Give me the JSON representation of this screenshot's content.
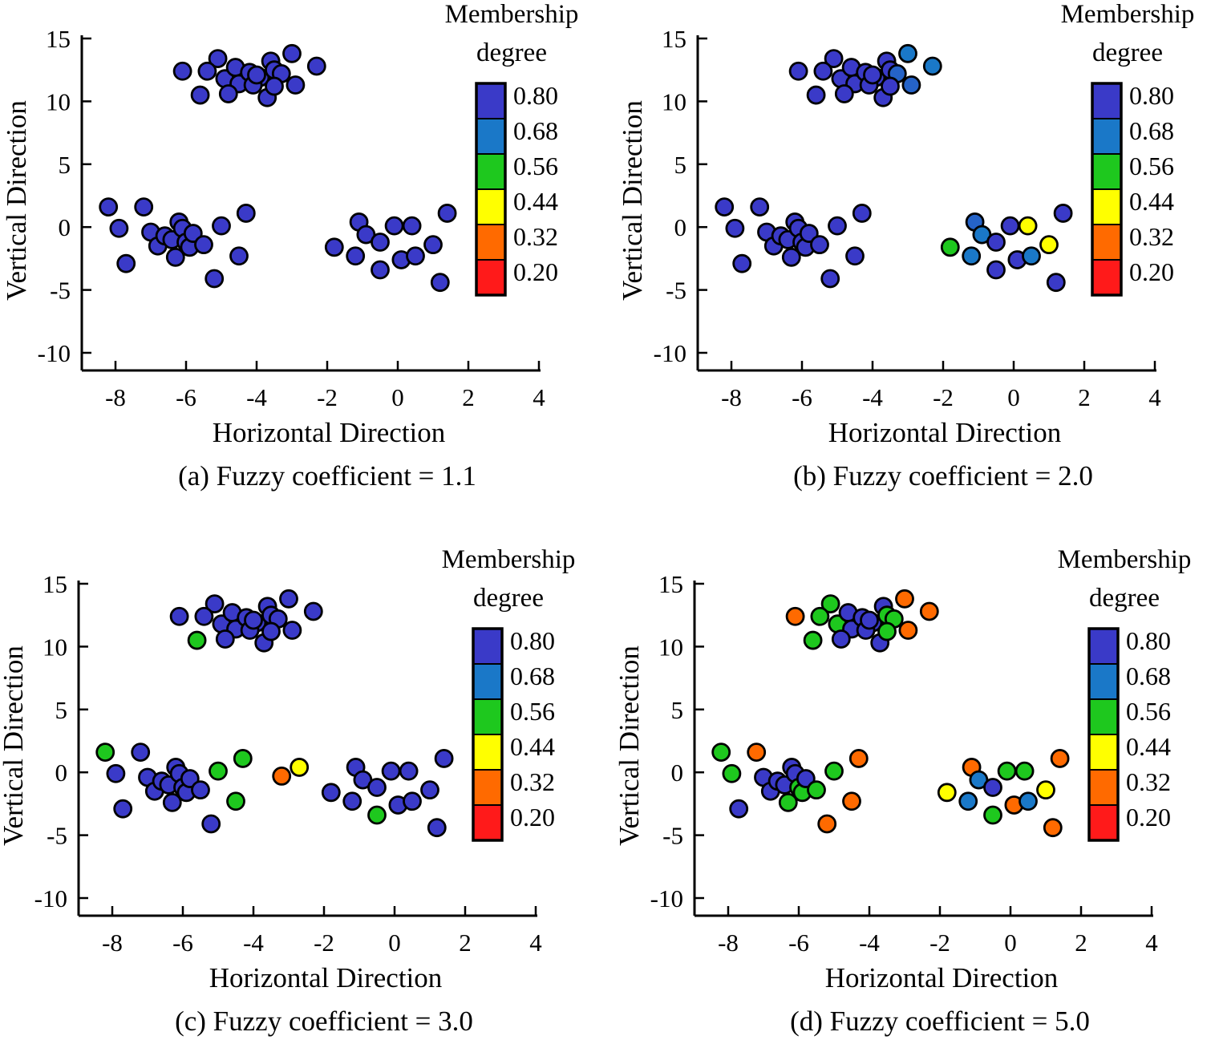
{
  "chart_data": [
    {
      "type": "scatter",
      "panel_id": "a",
      "caption": "(a) Fuzzy coefficient = 1.1",
      "xlabel": "Horizontal Direction",
      "ylabel": "Vertical Direction",
      "xlim": [
        -9,
        4
      ],
      "ylim": [
        -11.5,
        15
      ],
      "xticks": [
        -8,
        -6,
        -4,
        -2,
        0,
        2,
        4
      ],
      "yticks": [
        15,
        10,
        5,
        0,
        -5,
        -10
      ],
      "legend": {
        "title_line1": "Membership",
        "title_line2": "degree",
        "labels": [
          "0.80",
          "0.68",
          "0.56",
          "0.44",
          "0.32",
          "0.20"
        ]
      },
      "points": [
        [
          -6.1,
          12.4,
          0.8
        ],
        [
          -5.1,
          13.4,
          0.8
        ],
        [
          -5.4,
          12.4,
          0.8
        ],
        [
          -4.9,
          11.8,
          0.8
        ],
        [
          -4.6,
          12.7,
          0.8
        ],
        [
          -4.5,
          11.4,
          0.8
        ],
        [
          -4.2,
          12.3,
          0.8
        ],
        [
          -3.9,
          11.9,
          0.8
        ],
        [
          -3.6,
          13.2,
          0.8
        ],
        [
          -3.5,
          12.5,
          0.8
        ],
        [
          -3.3,
          12.2,
          0.8
        ],
        [
          -3.0,
          13.8,
          0.8
        ],
        [
          -2.3,
          12.8,
          0.8
        ],
        [
          -5.6,
          10.5,
          0.8
        ],
        [
          -4.8,
          10.6,
          0.8
        ],
        [
          -4.1,
          11.3,
          0.8
        ],
        [
          -3.7,
          10.3,
          0.8
        ],
        [
          -3.5,
          11.2,
          0.8
        ],
        [
          -2.9,
          11.3,
          0.8
        ],
        [
          -4.0,
          12.1,
          0.8
        ],
        [
          -8.2,
          1.6,
          0.8
        ],
        [
          -7.9,
          -0.1,
          0.8
        ],
        [
          -7.2,
          1.6,
          0.8
        ],
        [
          -7.0,
          -0.4,
          0.8
        ],
        [
          -6.8,
          -1.5,
          0.8
        ],
        [
          -6.6,
          -0.7,
          0.8
        ],
        [
          -6.4,
          -1.0,
          0.8
        ],
        [
          -6.3,
          -2.4,
          0.8
        ],
        [
          -6.2,
          0.4,
          0.8
        ],
        [
          -6.1,
          -0.1,
          0.8
        ],
        [
          -6.0,
          -1.2,
          0.8
        ],
        [
          -5.9,
          -1.6,
          0.8
        ],
        [
          -5.8,
          -0.5,
          0.8
        ],
        [
          -5.5,
          -1.4,
          0.8
        ],
        [
          -5.0,
          0.1,
          0.8
        ],
        [
          -4.5,
          -2.3,
          0.8
        ],
        [
          -4.3,
          1.1,
          0.8
        ],
        [
          -7.7,
          -2.9,
          0.8
        ],
        [
          -5.2,
          -4.1,
          0.8
        ],
        [
          -1.8,
          -1.6,
          0.8
        ],
        [
          -1.2,
          -2.3,
          0.8
        ],
        [
          -1.1,
          0.4,
          0.8
        ],
        [
          -0.9,
          -0.6,
          0.8
        ],
        [
          -0.5,
          -1.2,
          0.8
        ],
        [
          -0.5,
          -3.4,
          0.8
        ],
        [
          -0.1,
          0.1,
          0.8
        ],
        [
          0.1,
          -2.6,
          0.8
        ],
        [
          0.4,
          0.1,
          0.8
        ],
        [
          0.5,
          -2.3,
          0.8
        ],
        [
          1.0,
          -1.4,
          0.8
        ],
        [
          1.2,
          -4.4,
          0.8
        ],
        [
          1.4,
          1.1,
          0.8
        ]
      ]
    },
    {
      "type": "scatter",
      "panel_id": "b",
      "caption": "(b) Fuzzy coefficient = 2.0",
      "xlabel": "Horizontal Direction",
      "ylabel": "Vertical Direction",
      "xlim": [
        -9,
        4
      ],
      "ylim": [
        -11.5,
        15
      ],
      "xticks": [
        -8,
        -6,
        -4,
        -2,
        0,
        2,
        4
      ],
      "yticks": [
        15,
        10,
        5,
        0,
        -5,
        -10
      ],
      "legend": {
        "title_line1": "Membership",
        "title_line2": "degree",
        "labels": [
          "0.80",
          "0.68",
          "0.56",
          "0.44",
          "0.32",
          "0.20"
        ]
      },
      "points": [
        [
          -6.1,
          12.4,
          0.8
        ],
        [
          -5.1,
          13.4,
          0.8
        ],
        [
          -5.4,
          12.4,
          0.8
        ],
        [
          -4.9,
          11.8,
          0.8
        ],
        [
          -4.6,
          12.7,
          0.8
        ],
        [
          -4.5,
          11.4,
          0.8
        ],
        [
          -4.2,
          12.3,
          0.8
        ],
        [
          -3.9,
          11.9,
          0.8
        ],
        [
          -3.6,
          13.2,
          0.8
        ],
        [
          -3.5,
          12.5,
          0.8
        ],
        [
          -3.3,
          12.2,
          0.72
        ],
        [
          -3.0,
          13.8,
          0.68
        ],
        [
          -2.3,
          12.8,
          0.68
        ],
        [
          -5.6,
          10.5,
          0.8
        ],
        [
          -4.8,
          10.6,
          0.8
        ],
        [
          -4.1,
          11.3,
          0.8
        ],
        [
          -3.7,
          10.3,
          0.8
        ],
        [
          -3.5,
          11.2,
          0.8
        ],
        [
          -2.9,
          11.3,
          0.72
        ],
        [
          -4.0,
          12.1,
          0.8
        ],
        [
          -8.2,
          1.6,
          0.8
        ],
        [
          -7.9,
          -0.1,
          0.8
        ],
        [
          -7.2,
          1.6,
          0.8
        ],
        [
          -7.0,
          -0.4,
          0.8
        ],
        [
          -6.8,
          -1.5,
          0.8
        ],
        [
          -6.6,
          -0.7,
          0.8
        ],
        [
          -6.4,
          -1.0,
          0.8
        ],
        [
          -6.3,
          -2.4,
          0.8
        ],
        [
          -6.2,
          0.4,
          0.8
        ],
        [
          -6.1,
          -0.1,
          0.8
        ],
        [
          -6.0,
          -1.2,
          0.8
        ],
        [
          -5.9,
          -1.6,
          0.8
        ],
        [
          -5.8,
          -0.5,
          0.8
        ],
        [
          -5.5,
          -1.4,
          0.8
        ],
        [
          -5.0,
          0.1,
          0.8
        ],
        [
          -4.5,
          -2.3,
          0.8
        ],
        [
          -4.3,
          1.1,
          0.8
        ],
        [
          -7.7,
          -2.9,
          0.8
        ],
        [
          -5.2,
          -4.1,
          0.8
        ],
        [
          -1.8,
          -1.6,
          0.56
        ],
        [
          -1.2,
          -2.3,
          0.68
        ],
        [
          -1.1,
          0.4,
          0.72
        ],
        [
          -0.9,
          -0.6,
          0.68
        ],
        [
          -0.5,
          -1.2,
          0.8
        ],
        [
          -0.5,
          -3.4,
          0.8
        ],
        [
          -0.1,
          0.1,
          0.8
        ],
        [
          0.1,
          -2.6,
          0.8
        ],
        [
          0.4,
          0.1,
          0.44
        ],
        [
          0.5,
          -2.3,
          0.68
        ],
        [
          1.0,
          -1.4,
          0.44
        ],
        [
          1.2,
          -4.4,
          0.8
        ],
        [
          1.4,
          1.1,
          0.8
        ]
      ]
    },
    {
      "type": "scatter",
      "panel_id": "c",
      "caption": "(c) Fuzzy coefficient = 3.0",
      "xlabel": "Horizontal Direction",
      "ylabel": "Vertical Direction",
      "xlim": [
        -9,
        4
      ],
      "ylim": [
        -11.5,
        15
      ],
      "xticks": [
        -8,
        -6,
        -4,
        -2,
        0,
        2,
        4
      ],
      "yticks": [
        15,
        10,
        5,
        0,
        -5,
        -10
      ],
      "legend": {
        "title_line1": "Membership",
        "title_line2": "degree",
        "labels": [
          "0.80",
          "0.68",
          "0.56",
          "0.44",
          "0.32",
          "0.20"
        ]
      },
      "points": [
        [
          -6.1,
          12.4,
          0.8
        ],
        [
          -5.1,
          13.4,
          0.8
        ],
        [
          -5.4,
          12.4,
          0.8
        ],
        [
          -4.9,
          11.8,
          0.8
        ],
        [
          -4.6,
          12.7,
          0.8
        ],
        [
          -4.5,
          11.4,
          0.8
        ],
        [
          -4.2,
          12.3,
          0.8
        ],
        [
          -3.9,
          11.9,
          0.8
        ],
        [
          -3.6,
          13.2,
          0.8
        ],
        [
          -3.5,
          12.5,
          0.8
        ],
        [
          -3.3,
          12.2,
          0.8
        ],
        [
          -3.0,
          13.8,
          0.8
        ],
        [
          -2.3,
          12.8,
          0.8
        ],
        [
          -5.6,
          10.5,
          0.56
        ],
        [
          -4.8,
          10.6,
          0.8
        ],
        [
          -4.1,
          11.3,
          0.8
        ],
        [
          -3.7,
          10.3,
          0.8
        ],
        [
          -3.5,
          11.2,
          0.8
        ],
        [
          -2.9,
          11.3,
          0.8
        ],
        [
          -4.0,
          12.1,
          0.8
        ],
        [
          -8.2,
          1.6,
          0.56
        ],
        [
          -7.9,
          -0.1,
          0.8
        ],
        [
          -7.2,
          1.6,
          0.8
        ],
        [
          -7.0,
          -0.4,
          0.8
        ],
        [
          -6.8,
          -1.5,
          0.8
        ],
        [
          -6.6,
          -0.7,
          0.8
        ],
        [
          -6.4,
          -1.0,
          0.8
        ],
        [
          -6.3,
          -2.4,
          0.8
        ],
        [
          -6.2,
          0.4,
          0.8
        ],
        [
          -6.1,
          -0.1,
          0.8
        ],
        [
          -6.0,
          -1.2,
          0.8
        ],
        [
          -5.9,
          -1.6,
          0.8
        ],
        [
          -5.8,
          -0.5,
          0.8
        ],
        [
          -5.5,
          -1.4,
          0.8
        ],
        [
          -5.0,
          0.1,
          0.56
        ],
        [
          -4.5,
          -2.3,
          0.56
        ],
        [
          -4.3,
          1.1,
          0.56
        ],
        [
          -7.7,
          -2.9,
          0.8
        ],
        [
          -5.2,
          -4.1,
          0.8
        ],
        [
          -3.2,
          -0.3,
          0.32
        ],
        [
          -2.7,
          0.4,
          0.44
        ],
        [
          -1.8,
          -1.6,
          0.8
        ],
        [
          -1.2,
          -2.3,
          0.8
        ],
        [
          -1.1,
          0.4,
          0.8
        ],
        [
          -0.9,
          -0.6,
          0.8
        ],
        [
          -0.5,
          -1.2,
          0.8
        ],
        [
          -0.5,
          -3.4,
          0.56
        ],
        [
          -0.1,
          0.1,
          0.8
        ],
        [
          0.1,
          -2.6,
          0.8
        ],
        [
          0.4,
          0.1,
          0.8
        ],
        [
          0.5,
          -2.3,
          0.8
        ],
        [
          1.0,
          -1.4,
          0.8
        ],
        [
          1.2,
          -4.4,
          0.8
        ],
        [
          1.4,
          1.1,
          0.8
        ]
      ]
    },
    {
      "type": "scatter",
      "panel_id": "d",
      "caption": "(d) Fuzzy coefficient = 5.0",
      "xlabel": "Horizontal Direction",
      "ylabel": "Vertical Direction",
      "xlim": [
        -9,
        4
      ],
      "ylim": [
        -11.5,
        15
      ],
      "xticks": [
        -8,
        -6,
        -4,
        -2,
        0,
        2,
        4
      ],
      "yticks": [
        15,
        10,
        5,
        0,
        -5,
        -10
      ],
      "legend": {
        "title_line1": "Membership",
        "title_line2": "degree",
        "labels": [
          "0.80",
          "0.68",
          "0.56",
          "0.44",
          "0.32",
          "0.20"
        ]
      },
      "points": [
        [
          -6.1,
          12.4,
          0.32
        ],
        [
          -5.1,
          13.4,
          0.56
        ],
        [
          -5.4,
          12.4,
          0.56
        ],
        [
          -4.9,
          11.8,
          0.56
        ],
        [
          -4.6,
          12.7,
          0.8
        ],
        [
          -4.5,
          11.4,
          0.8
        ],
        [
          -4.2,
          12.3,
          0.8
        ],
        [
          -3.9,
          11.9,
          0.8
        ],
        [
          -3.6,
          13.2,
          0.8
        ],
        [
          -3.5,
          12.5,
          0.56
        ],
        [
          -3.3,
          12.2,
          0.56
        ],
        [
          -3.0,
          13.8,
          0.32
        ],
        [
          -2.3,
          12.8,
          0.32
        ],
        [
          -5.6,
          10.5,
          0.56
        ],
        [
          -4.8,
          10.6,
          0.8
        ],
        [
          -4.1,
          11.3,
          0.8
        ],
        [
          -3.7,
          10.3,
          0.8
        ],
        [
          -3.5,
          11.2,
          0.56
        ],
        [
          -2.9,
          11.3,
          0.32
        ],
        [
          -4.0,
          12.1,
          0.8
        ],
        [
          -8.2,
          1.6,
          0.56
        ],
        [
          -7.9,
          -0.1,
          0.56
        ],
        [
          -7.2,
          1.6,
          0.32
        ],
        [
          -7.0,
          -0.4,
          0.8
        ],
        [
          -6.8,
          -1.5,
          0.8
        ],
        [
          -6.6,
          -0.7,
          0.8
        ],
        [
          -6.4,
          -1.0,
          0.8
        ],
        [
          -6.3,
          -2.4,
          0.56
        ],
        [
          -6.2,
          0.4,
          0.8
        ],
        [
          -6.1,
          -0.1,
          0.8
        ],
        [
          -6.0,
          -1.2,
          0.56
        ],
        [
          -5.9,
          -1.6,
          0.56
        ],
        [
          -5.8,
          -0.5,
          0.8
        ],
        [
          -5.5,
          -1.4,
          0.56
        ],
        [
          -5.0,
          0.1,
          0.56
        ],
        [
          -4.5,
          -2.3,
          0.32
        ],
        [
          -4.3,
          1.1,
          0.32
        ],
        [
          -7.7,
          -2.9,
          0.8
        ],
        [
          -5.2,
          -4.1,
          0.32
        ],
        [
          -1.8,
          -1.6,
          0.44
        ],
        [
          -1.2,
          -2.3,
          0.68
        ],
        [
          -1.1,
          0.4,
          0.32
        ],
        [
          -0.9,
          -0.6,
          0.68
        ],
        [
          -0.5,
          -1.2,
          0.8
        ],
        [
          -0.5,
          -3.4,
          0.56
        ],
        [
          -0.1,
          0.1,
          0.56
        ],
        [
          0.1,
          -2.6,
          0.32
        ],
        [
          0.4,
          0.1,
          0.56
        ],
        [
          0.5,
          -2.3,
          0.68
        ],
        [
          1.0,
          -1.4,
          0.44
        ],
        [
          1.2,
          -4.4,
          0.32
        ],
        [
          1.4,
          1.1,
          0.32
        ]
      ]
    }
  ],
  "colors": {
    "0.80": "#3a3ac8",
    "0.68": "#1a78c8",
    "0.56": "#1ec81e",
    "0.44": "#ffff00",
    "0.32": "#ff6a00",
    "0.20": "#ff1a1a",
    "interpolation_stops": [
      [
        0.2,
        "#ff1a1a"
      ],
      [
        0.32,
        "#ff6a00"
      ],
      [
        0.44,
        "#ffff00"
      ],
      [
        0.56,
        "#1ec81e"
      ],
      [
        0.68,
        "#1a78c8"
      ],
      [
        0.8,
        "#3a3ac8"
      ]
    ]
  }
}
